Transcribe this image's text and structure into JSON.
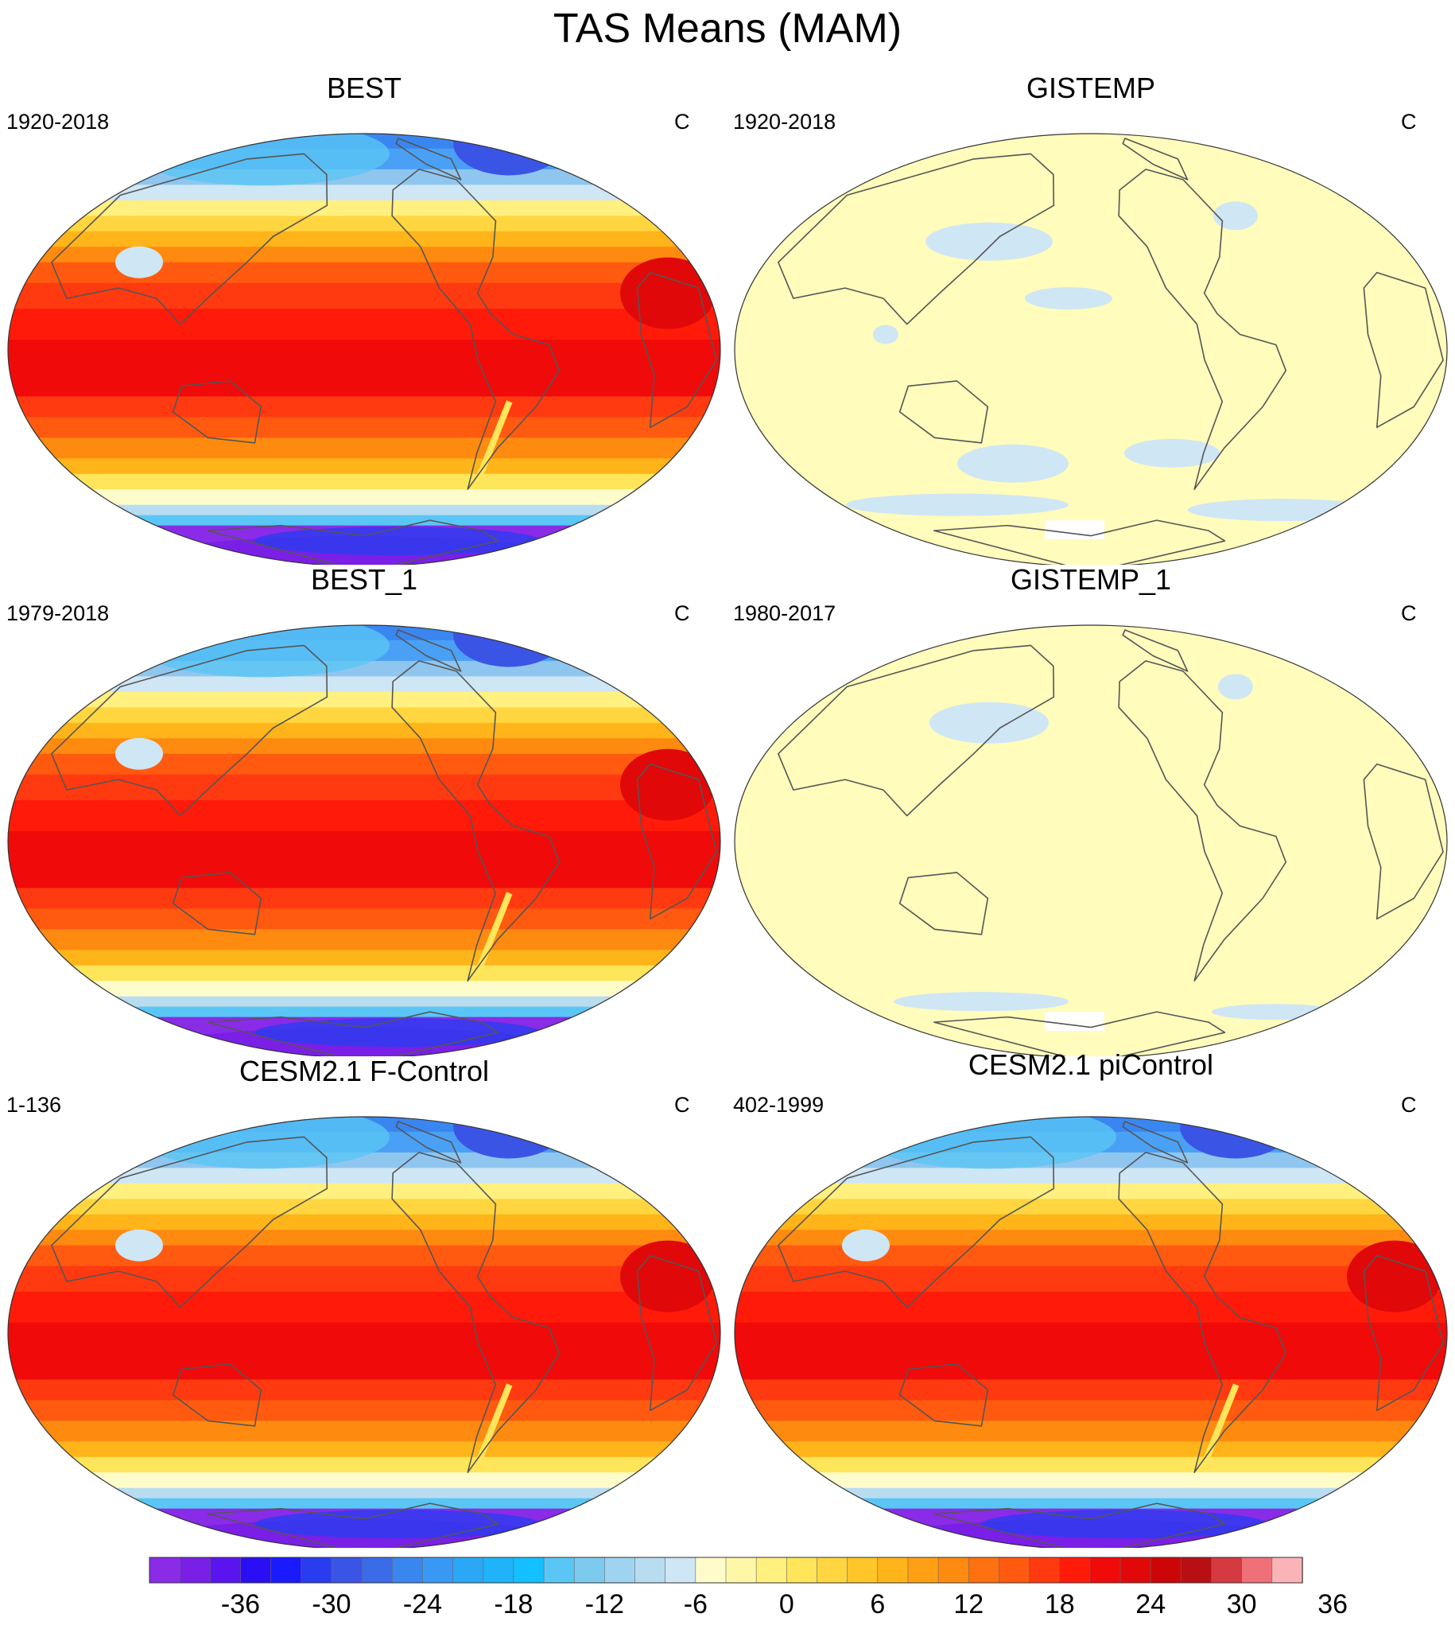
{
  "figure": {
    "title": "TAS Means (MAM)"
  },
  "panels": [
    {
      "title": "BEST",
      "period": "1920-2018",
      "units": "C",
      "field": "full"
    },
    {
      "title": "GISTEMP",
      "period": "1920-2018",
      "units": "C",
      "field": "anomaly"
    },
    {
      "title": "BEST_1",
      "period": "1979-2018",
      "units": "C",
      "field": "full"
    },
    {
      "title": "GISTEMP_1",
      "period": "1980-2017",
      "units": "C",
      "field": "anomaly"
    },
    {
      "title": "CESM2.1 F-Control",
      "period": "1-136",
      "units": "C",
      "field": "full"
    },
    {
      "title": "CESM2.1 piControl",
      "period": "402-1999",
      "units": "C",
      "field": "full"
    }
  ],
  "colorbar": {
    "tick_labels": [
      "-36",
      "-30",
      "-24",
      "-18",
      "-12",
      "-6",
      "0",
      "6",
      "12",
      "18",
      "24",
      "30",
      "36"
    ],
    "colors": [
      "#8a2be8",
      "#7a1fe6",
      "#5a14f0",
      "#2a0ff5",
      "#1a1aff",
      "#2a3cf0",
      "#3a55e6",
      "#3a6ce8",
      "#3a86f0",
      "#3a98f5",
      "#2aa8f5",
      "#1fb4fa",
      "#14c0ff",
      "#5ac6f5",
      "#7dcaef",
      "#9fd4f0",
      "#b8dcf0",
      "#cfe6f5",
      "#fffccc",
      "#fff7a8",
      "#fff080",
      "#ffe55a",
      "#ffd640",
      "#ffc62a",
      "#ffb41a",
      "#ffa014",
      "#ff8a10",
      "#ff7010",
      "#ff5a10",
      "#ff3a10",
      "#ff1a0a",
      "#f00a0a",
      "#e00808",
      "#cc0606",
      "#b80f14",
      "#d43a40",
      "#f07078",
      "#fab4b8"
    ]
  }
}
